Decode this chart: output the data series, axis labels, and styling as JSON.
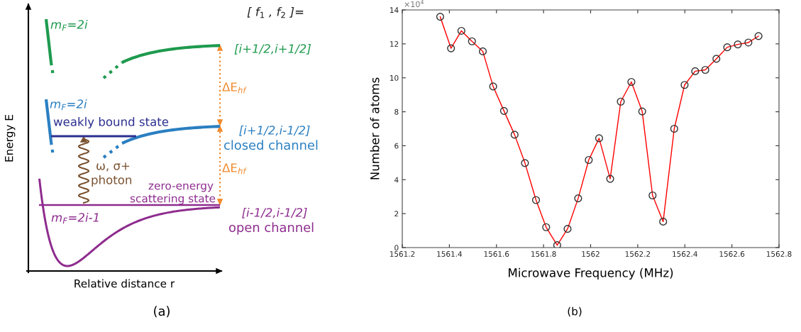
{
  "chart_data": [
    {
      "type": "other",
      "xlabel": "Relative distance r",
      "ylabel": "Energy E",
      "annotations": [
        "[ f$_{1}$ , f$_{2}$ ]=",
        "m$_{F}$=2i",
        "[i+1/2,i+1/2]",
        "ΔE$_{hf}$",
        "m$_{F}$=2i",
        "weakly bound state",
        "[i+1/2,i-1/2]",
        "closed channel",
        "ΔE$_{hf}$",
        "ω, σ+",
        "photon",
        "zero-energy",
        "scattering state",
        "m$_{F}$=2i-1",
        "[i-1/2,i-1/2]",
        "open channel",
        "(a)"
      ]
    },
    {
      "type": "line",
      "xlabel": "Microwave Frequency (MHz)",
      "ylabel": "Number of atoms",
      "annotations": [
        "×10$^{4}$",
        "(b)"
      ],
      "x": [
        1561.361,
        1561.407,
        1561.451,
        1561.496,
        1561.542,
        1561.586,
        1561.632,
        1561.677,
        1561.721,
        1561.768,
        1561.811,
        1561.858,
        1561.902,
        1561.947,
        1561.992,
        1562.036,
        1562.083,
        1562.128,
        1562.173,
        1562.219,
        1562.263,
        1562.308,
        1562.355,
        1562.399,
        1562.444,
        1562.487,
        1562.534,
        1562.58,
        1562.625,
        1562.67,
        1562.713
      ],
      "series": [
        {
          "color": "#ff0000",
          "values": [
            13.6,
            11.74,
            12.77,
            12.15,
            11.56,
            9.49,
            8.05,
            6.65,
            4.98,
            2.8,
            1.2,
            0.14,
            1.1,
            2.9,
            5.16,
            6.44,
            4.05,
            8.6,
            9.76,
            8.02,
            3.07,
            1.53,
            7.0,
            9.58,
            10.39,
            10.47,
            11.12,
            11.8,
            11.97,
            12.08,
            12.46
          ]
        }
      ],
      "marker": "circle",
      "line_style": "solid",
      "xlim": [
        1561.2,
        1562.8
      ],
      "xticks": [
        1561.2,
        1561.4,
        1561.6,
        1561.8,
        1562,
        1562.2,
        1562.4,
        1562.6,
        1562.8
      ],
      "ylim": [
        0,
        14
      ],
      "yticks": [
        0,
        2,
        4,
        6,
        8,
        10,
        12,
        14
      ],
      "grid": false,
      "legend": false
    }
  ]
}
